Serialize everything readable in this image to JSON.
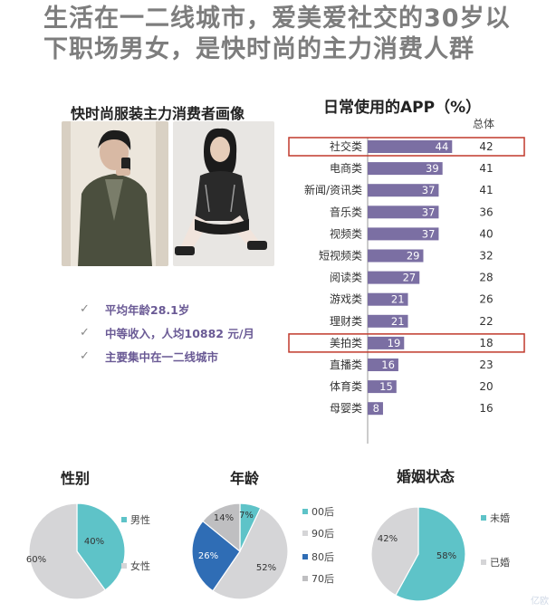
{
  "headline": {
    "line1": "生活在一二线城市，爱美爱社交的30岁以",
    "line2": "下职场男女，是快时尚的主力消费人群"
  },
  "consumer_profile": {
    "title": "快时尚服装主力消费者画像",
    "bullets": [
      "平均年龄28.1岁",
      "中等收入，人均10882 元/月",
      "主要集中在一二线城市"
    ]
  },
  "watermark": "亿欧",
  "chart_data": [
    {
      "type": "bar",
      "title": "日常使用的APP（%）",
      "extra_column_header": "总体",
      "categories": [
        "社交类",
        "电商类",
        "新闻/资讯类",
        "音乐类",
        "视频类",
        "短视频类",
        "阅读类",
        "游戏类",
        "理财类",
        "美拍类",
        "直播类",
        "体育类",
        "母婴类"
      ],
      "values": [
        44,
        39,
        37,
        37,
        37,
        29,
        27,
        21,
        21,
        19,
        16,
        15,
        8
      ],
      "overall": [
        42,
        41,
        41,
        36,
        40,
        32,
        28,
        26,
        22,
        18,
        23,
        20,
        16
      ],
      "highlighted": [
        "社交类",
        "美拍类"
      ],
      "bar_color": "#7b6fa3",
      "highlight_color": "#c0392b"
    },
    {
      "type": "pie",
      "title": "性别",
      "slices": [
        {
          "label": "男性",
          "value": 40,
          "display": "40%",
          "color": "#5ec3c8"
        },
        {
          "label": "女性",
          "value": 60,
          "display": "60%",
          "color": "#d5d5d7"
        }
      ]
    },
    {
      "type": "pie",
      "title": "年龄",
      "slices": [
        {
          "label": "00后",
          "value": 7,
          "display": "7%",
          "color": "#5ec3c8"
        },
        {
          "label": "90后",
          "value": 52,
          "display": "52%",
          "color": "#d5d5d7"
        },
        {
          "label": "80后",
          "value": 26,
          "display": "26%",
          "color": "#2f6db5"
        },
        {
          "label": "70后",
          "value": 14,
          "display": "14%",
          "color": "#bfbfc1"
        }
      ]
    },
    {
      "type": "pie",
      "title": "婚姻状态",
      "slices": [
        {
          "label": "未婚",
          "value": 58,
          "display": "58%",
          "color": "#5ec3c8"
        },
        {
          "label": "已婚",
          "value": 42,
          "display": "42%",
          "color": "#d5d5d7"
        }
      ]
    }
  ]
}
